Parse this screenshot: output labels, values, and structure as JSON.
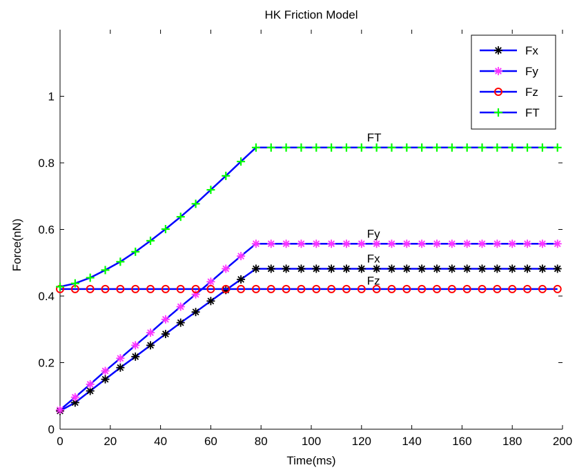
{
  "chart_data": {
    "type": "line",
    "title": "HK Friction Model",
    "xlabel": "Time(ms)",
    "ylabel": "Force(nN)",
    "xlim": [
      0,
      200
    ],
    "ylim": [
      0,
      1.2
    ],
    "xticks": [
      0,
      20,
      40,
      60,
      80,
      100,
      120,
      140,
      160,
      180,
      200
    ],
    "yticks": [
      0,
      0.2,
      0.4,
      0.6,
      0.8,
      1
    ],
    "ytick_labels": [
      "0",
      "0.2",
      "0.4",
      "0.6",
      "0.8",
      "1"
    ],
    "grid": false,
    "legend_position": "top-right",
    "line_color": "#0000FF",
    "series": [
      {
        "name": "Fx",
        "marker": "asterisk",
        "marker_color": "#000000",
        "x": [
          0,
          6,
          12,
          18,
          24,
          30,
          36,
          42,
          48,
          54,
          60,
          66,
          72,
          78,
          84,
          90,
          96,
          102,
          108,
          114,
          120,
          126,
          132,
          138,
          144,
          150,
          156,
          162,
          168,
          174,
          180,
          186,
          192,
          198
        ],
        "y": [
          0.055,
          0.08,
          0.115,
          0.15,
          0.185,
          0.218,
          0.252,
          0.286,
          0.32,
          0.352,
          0.385,
          0.418,
          0.45,
          0.482,
          0.482,
          0.482,
          0.482,
          0.482,
          0.482,
          0.482,
          0.482,
          0.482,
          0.482,
          0.482,
          0.482,
          0.482,
          0.482,
          0.482,
          0.482,
          0.482,
          0.482,
          0.482,
          0.482,
          0.482
        ]
      },
      {
        "name": "Fy",
        "marker": "asterisk",
        "marker_color": "#FF33FF",
        "x": [
          0,
          6,
          12,
          18,
          24,
          30,
          36,
          42,
          48,
          54,
          60,
          66,
          72,
          78,
          84,
          90,
          96,
          102,
          108,
          114,
          120,
          126,
          132,
          138,
          144,
          150,
          156,
          162,
          168,
          174,
          180,
          186,
          192,
          198
        ],
        "y": [
          0.058,
          0.096,
          0.135,
          0.175,
          0.213,
          0.252,
          0.29,
          0.33,
          0.368,
          0.405,
          0.443,
          0.482,
          0.52,
          0.557,
          0.557,
          0.557,
          0.557,
          0.557,
          0.557,
          0.557,
          0.557,
          0.557,
          0.557,
          0.557,
          0.557,
          0.557,
          0.557,
          0.557,
          0.557,
          0.557,
          0.557,
          0.557,
          0.557,
          0.557
        ]
      },
      {
        "name": "Fz",
        "marker": "circle",
        "marker_color": "#FF0000",
        "x": [
          0,
          6,
          12,
          18,
          24,
          30,
          36,
          42,
          48,
          54,
          60,
          66,
          72,
          78,
          84,
          90,
          96,
          102,
          108,
          114,
          120,
          126,
          132,
          138,
          144,
          150,
          156,
          162,
          168,
          174,
          180,
          186,
          192,
          198
        ],
        "y": [
          0.421,
          0.421,
          0.421,
          0.421,
          0.421,
          0.421,
          0.421,
          0.421,
          0.421,
          0.421,
          0.421,
          0.421,
          0.421,
          0.421,
          0.421,
          0.421,
          0.421,
          0.421,
          0.421,
          0.421,
          0.421,
          0.421,
          0.421,
          0.421,
          0.421,
          0.421,
          0.421,
          0.421,
          0.421,
          0.421,
          0.421,
          0.421,
          0.421,
          0.421
        ]
      },
      {
        "name": "FT",
        "marker": "plus",
        "marker_color": "#00FF00",
        "x": [
          0,
          6,
          12,
          18,
          24,
          30,
          36,
          42,
          48,
          54,
          60,
          66,
          72,
          78,
          84,
          90,
          96,
          102,
          108,
          114,
          120,
          126,
          132,
          138,
          144,
          150,
          156,
          162,
          168,
          174,
          180,
          186,
          192,
          198
        ],
        "y": [
          0.428,
          0.438,
          0.455,
          0.478,
          0.503,
          0.533,
          0.566,
          0.601,
          0.638,
          0.677,
          0.719,
          0.761,
          0.804,
          0.846,
          0.846,
          0.846,
          0.846,
          0.846,
          0.846,
          0.846,
          0.846,
          0.846,
          0.846,
          0.846,
          0.846,
          0.846,
          0.846,
          0.846,
          0.846,
          0.846,
          0.846,
          0.846,
          0.846,
          0.846
        ]
      }
    ],
    "annotations": [
      {
        "text": "FT",
        "x": 120,
        "y": 0.875
      },
      {
        "text": "Fy",
        "x": 120,
        "y": 0.586
      },
      {
        "text": "Fx",
        "x": 120,
        "y": 0.511
      },
      {
        "text": "Fz",
        "x": 120,
        "y": 0.445
      }
    ]
  }
}
